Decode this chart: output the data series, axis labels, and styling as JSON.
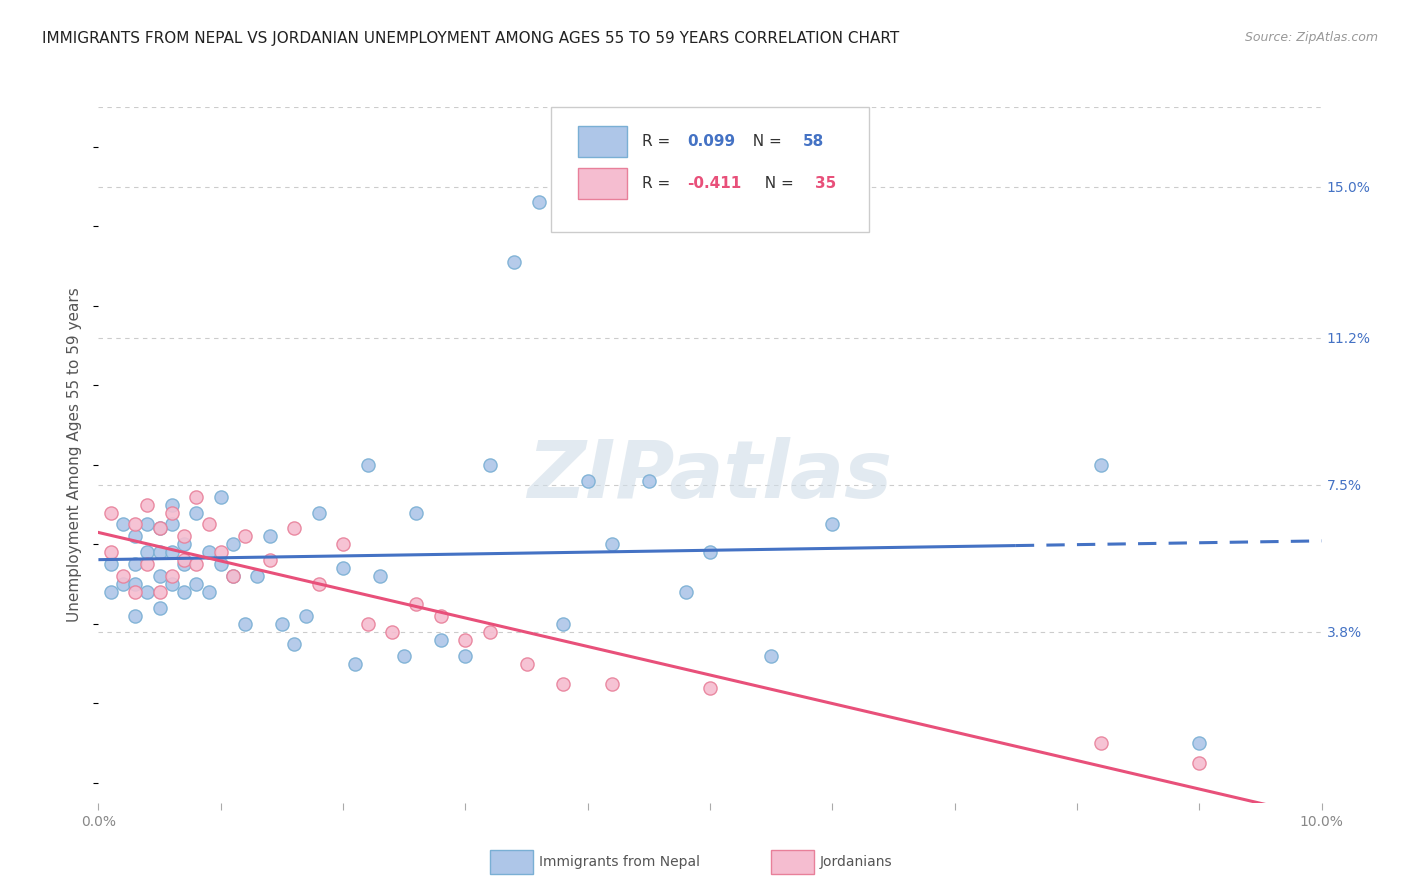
{
  "title": "IMMIGRANTS FROM NEPAL VS JORDANIAN UNEMPLOYMENT AMONG AGES 55 TO 59 YEARS CORRELATION CHART",
  "source": "Source: ZipAtlas.com",
  "ylabel": "Unemployment Among Ages 55 to 59 years",
  "right_yticks": [
    0.038,
    0.075,
    0.112,
    0.15
  ],
  "right_ytick_labels": [
    "3.8%",
    "7.5%",
    "11.2%",
    "15.0%"
  ],
  "xlim": [
    0.0,
    0.1
  ],
  "ylim": [
    -0.005,
    0.17
  ],
  "nepal_color": "#aec6e8",
  "nepal_edge_color": "#7aafd4",
  "jordan_color": "#f5bdd0",
  "jordan_edge_color": "#e8809a",
  "trend_nepal_color": "#4472c4",
  "trend_jordan_color": "#e8507a",
  "legend_r_nepal": "R = 0.099",
  "legend_n_nepal": "N = 58",
  "legend_r_jordan": "R = -0.411",
  "legend_n_jordan": "N = 35",
  "nepal_points_x": [
    0.001,
    0.001,
    0.002,
    0.002,
    0.003,
    0.003,
    0.003,
    0.003,
    0.004,
    0.004,
    0.004,
    0.005,
    0.005,
    0.005,
    0.005,
    0.006,
    0.006,
    0.006,
    0.006,
    0.007,
    0.007,
    0.007,
    0.008,
    0.008,
    0.009,
    0.009,
    0.01,
    0.01,
    0.011,
    0.011,
    0.012,
    0.013,
    0.014,
    0.015,
    0.016,
    0.017,
    0.018,
    0.02,
    0.021,
    0.022,
    0.023,
    0.025,
    0.026,
    0.028,
    0.03,
    0.032,
    0.034,
    0.036,
    0.038,
    0.04,
    0.042,
    0.045,
    0.048,
    0.05,
    0.055,
    0.06,
    0.082,
    0.09
  ],
  "nepal_points_y": [
    0.055,
    0.048,
    0.05,
    0.065,
    0.05,
    0.055,
    0.062,
    0.042,
    0.048,
    0.058,
    0.065,
    0.052,
    0.058,
    0.064,
    0.044,
    0.05,
    0.058,
    0.065,
    0.07,
    0.048,
    0.055,
    0.06,
    0.05,
    0.068,
    0.048,
    0.058,
    0.055,
    0.072,
    0.052,
    0.06,
    0.04,
    0.052,
    0.062,
    0.04,
    0.035,
    0.042,
    0.068,
    0.054,
    0.03,
    0.08,
    0.052,
    0.032,
    0.068,
    0.036,
    0.032,
    0.08,
    0.131,
    0.146,
    0.04,
    0.076,
    0.06,
    0.076,
    0.048,
    0.058,
    0.032,
    0.065,
    0.08,
    0.01
  ],
  "jordan_points_x": [
    0.001,
    0.001,
    0.002,
    0.003,
    0.003,
    0.004,
    0.004,
    0.005,
    0.005,
    0.006,
    0.006,
    0.007,
    0.007,
    0.008,
    0.008,
    0.009,
    0.01,
    0.011,
    0.012,
    0.014,
    0.016,
    0.018,
    0.02,
    0.022,
    0.024,
    0.026,
    0.028,
    0.03,
    0.032,
    0.035,
    0.038,
    0.042,
    0.05,
    0.082,
    0.09
  ],
  "jordan_points_y": [
    0.058,
    0.068,
    0.052,
    0.048,
    0.065,
    0.055,
    0.07,
    0.048,
    0.064,
    0.052,
    0.068,
    0.056,
    0.062,
    0.055,
    0.072,
    0.065,
    0.058,
    0.052,
    0.062,
    0.056,
    0.064,
    0.05,
    0.06,
    0.04,
    0.038,
    0.045,
    0.042,
    0.036,
    0.038,
    0.03,
    0.025,
    0.025,
    0.024,
    0.01,
    0.005
  ],
  "background_color": "#ffffff",
  "grid_color": "#cccccc",
  "title_fontsize": 11,
  "axis_label_fontsize": 11,
  "tick_label_fontsize": 10,
  "marker_size": 90,
  "watermark_text": "ZIPatlas",
  "nepal_trend_solid_end": 0.075,
  "nepal_trend_dash_end": 0.1
}
